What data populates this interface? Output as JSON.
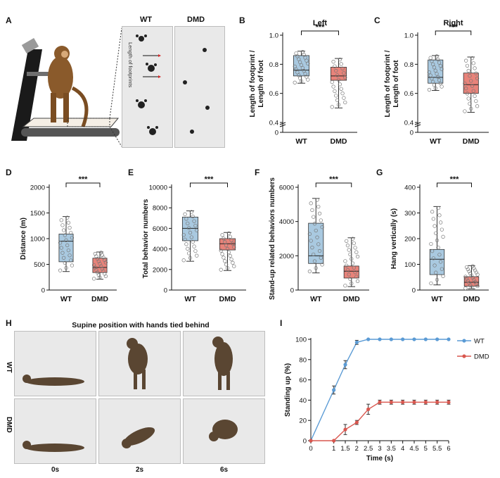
{
  "panels": {
    "A": {
      "letter": "A",
      "wt_label": "WT",
      "dmd_label": "DMD",
      "annotation": "Length of footprints"
    },
    "H": {
      "letter": "H",
      "title": "Supine position with hands tied behind",
      "row_wt": "WT",
      "row_dmd": "DMD",
      "times": [
        "0s",
        "2s",
        "6s"
      ]
    }
  },
  "colors": {
    "wt": "#a9c9e0",
    "dmd": "#e8837a",
    "wt_line": "#5b9bd5",
    "dmd_line": "#d9574f"
  },
  "chart_data": [
    {
      "id": "B",
      "letter": "B",
      "type": "box",
      "title": "Left",
      "ylabel": "Length of footprint / Length of foot",
      "ylim": [
        0,
        1.0
      ],
      "yticks": [
        "0",
        "0.4",
        "0.6",
        "0.8",
        "1.0"
      ],
      "ytick_values": [
        0,
        0.4,
        0.6,
        0.8,
        1.0
      ],
      "axis_break": true,
      "categories": [
        "WT",
        "DMD"
      ],
      "significance": "***",
      "boxes": [
        {
          "name": "WT",
          "min": 0.67,
          "q1": 0.72,
          "median": 0.76,
          "q3": 0.86,
          "max": 0.89
        },
        {
          "name": "DMD",
          "min": 0.5,
          "q1": 0.69,
          "median": 0.72,
          "q3": 0.78,
          "max": 0.84
        }
      ]
    },
    {
      "id": "C",
      "letter": "C",
      "type": "box",
      "title": "Right",
      "ylabel": "Length of footprint / Length of foot",
      "ylim": [
        0,
        1.0
      ],
      "yticks": [
        "0",
        "0.4",
        "0.6",
        "0.8",
        "1.0"
      ],
      "ytick_values": [
        0,
        0.4,
        0.6,
        0.8,
        1.0
      ],
      "axis_break": true,
      "categories": [
        "WT",
        "DMD"
      ],
      "significance": "***",
      "boxes": [
        {
          "name": "WT",
          "min": 0.62,
          "q1": 0.67,
          "median": 0.71,
          "q3": 0.83,
          "max": 0.86
        },
        {
          "name": "DMD",
          "min": 0.47,
          "q1": 0.6,
          "median": 0.66,
          "q3": 0.74,
          "max": 0.85
        }
      ]
    },
    {
      "id": "D",
      "letter": "D",
      "type": "box",
      "title": "",
      "ylabel": "Distance (m)",
      "ylim": [
        0,
        2000
      ],
      "yticks": [
        "0",
        "500",
        "1000",
        "1500",
        "2000"
      ],
      "ytick_values": [
        0,
        500,
        1000,
        1500,
        2000
      ],
      "axis_break": false,
      "categories": [
        "WT",
        "DMD"
      ],
      "significance": "***",
      "boxes": [
        {
          "name": "WT",
          "min": 360,
          "q1": 550,
          "median": 950,
          "q3": 1090,
          "max": 1430
        },
        {
          "name": "DMD",
          "min": 210,
          "q1": 340,
          "median": 440,
          "q3": 620,
          "max": 740
        }
      ]
    },
    {
      "id": "E",
      "letter": "E",
      "type": "box",
      "title": "",
      "ylabel": "Total behavior numbers",
      "ylim": [
        0,
        10000
      ],
      "yticks": [
        "0",
        "2000",
        "4000",
        "6000",
        "8000",
        "10000"
      ],
      "ytick_values": [
        0,
        2000,
        4000,
        6000,
        8000,
        10000
      ],
      "axis_break": false,
      "categories": [
        "WT",
        "DMD"
      ],
      "significance": "***",
      "boxes": [
        {
          "name": "WT",
          "min": 2800,
          "q1": 4800,
          "median": 6000,
          "q3": 7100,
          "max": 7700
        },
        {
          "name": "DMD",
          "min": 1900,
          "q1": 3900,
          "median": 4500,
          "q3": 5000,
          "max": 5600
        }
      ]
    },
    {
      "id": "F",
      "letter": "F",
      "type": "box",
      "title": "",
      "ylabel": "Stand-up related behaviors numbers",
      "ylim": [
        0,
        6000
      ],
      "yticks": [
        "0",
        "2000",
        "4000",
        "6000"
      ],
      "ytick_values": [
        0,
        2000,
        4000,
        6000
      ],
      "axis_break": false,
      "categories": [
        "WT",
        "DMD"
      ],
      "significance": "***",
      "boxes": [
        {
          "name": "WT",
          "min": 1000,
          "q1": 1550,
          "median": 2000,
          "q3": 3900,
          "max": 5350
        },
        {
          "name": "DMD",
          "min": 200,
          "q1": 700,
          "median": 1100,
          "q3": 1400,
          "max": 3050
        }
      ]
    },
    {
      "id": "G",
      "letter": "G",
      "type": "box",
      "title": "",
      "ylabel": "Hang vertically (s)",
      "ylim": [
        0,
        400
      ],
      "yticks": [
        "0",
        "100",
        "200",
        "300",
        "400"
      ],
      "ytick_values": [
        0,
        100,
        200,
        300,
        400
      ],
      "axis_break": false,
      "categories": [
        "WT",
        "DMD"
      ],
      "significance": "***",
      "boxes": [
        {
          "name": "WT",
          "min": 20,
          "q1": 60,
          "median": 120,
          "q3": 158,
          "max": 325
        },
        {
          "name": "DMD",
          "min": 5,
          "q1": 15,
          "median": 30,
          "q3": 52,
          "max": 95
        }
      ]
    },
    {
      "id": "I",
      "letter": "I",
      "type": "line",
      "title": "",
      "xlabel": "Time (s)",
      "ylabel": "Standing up (%)",
      "xlim": [
        0,
        6
      ],
      "ylim": [
        0,
        100
      ],
      "xticks": [
        "0",
        "1",
        "1.5",
        "2",
        "2.5",
        "3",
        "3.5",
        "4",
        "4.5",
        "5",
        "5.5",
        "6"
      ],
      "xtick_values": [
        0,
        1,
        1.5,
        2,
        2.5,
        3,
        3.5,
        4,
        4.5,
        5,
        5.5,
        6
      ],
      "yticks": [
        "0",
        "20",
        "40",
        "60",
        "80",
        "100"
      ],
      "ytick_values": [
        0,
        20,
        40,
        60,
        80,
        100
      ],
      "x": [
        0,
        1,
        1.5,
        2,
        2.5,
        3,
        3.5,
        4,
        4.5,
        5,
        5.5,
        6
      ],
      "legend_position": "right",
      "series": [
        {
          "name": "WT",
          "values": [
            0,
            50,
            75,
            97,
            100,
            100,
            100,
            100,
            100,
            100,
            100,
            100
          ],
          "errors": [
            0,
            4,
            4,
            2,
            0,
            0,
            0,
            0,
            0,
            0,
            0,
            0
          ]
        },
        {
          "name": "DMD",
          "values": [
            0,
            0,
            11,
            18,
            31,
            38,
            38,
            38,
            38,
            38,
            38,
            38
          ],
          "errors": [
            0,
            0,
            5,
            2,
            5,
            2,
            2,
            2,
            2,
            2,
            2,
            2
          ]
        }
      ]
    }
  ]
}
